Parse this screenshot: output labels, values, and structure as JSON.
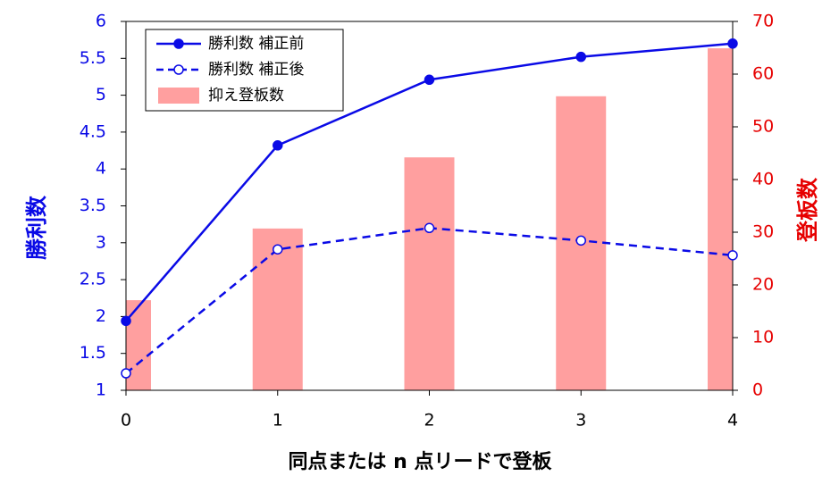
{
  "chart_data": {
    "type": "combo",
    "xlabel": "同点または n 点リードで登板",
    "ylabel": "勝利数",
    "y2label": "登板数",
    "x": [
      0,
      1,
      2,
      3,
      4
    ],
    "xlim": [
      0,
      4
    ],
    "xticks": [
      0,
      1,
      2,
      3,
      4
    ],
    "ylim": [
      1,
      6
    ],
    "yticks": [
      1,
      1.5,
      2,
      2.5,
      3,
      3.5,
      4,
      4.5,
      5,
      5.5,
      6
    ],
    "y2lim": [
      0,
      70
    ],
    "y2ticks": [
      0,
      10,
      20,
      30,
      40,
      50,
      60,
      70
    ],
    "legend": "upper left",
    "series": [
      {
        "name": "勝利数 補正前",
        "kind": "line",
        "dashed": false,
        "marker": "filled",
        "color": "#0a0ae6",
        "values": [
          1.94,
          4.32,
          5.21,
          5.52,
          5.7
        ]
      },
      {
        "name": "勝利数 補正後",
        "kind": "line",
        "dashed": true,
        "marker": "open",
        "color": "#0a0ae6",
        "values": [
          1.23,
          2.91,
          3.2,
          3.03,
          2.83
        ]
      },
      {
        "name": "抑え登板数",
        "kind": "bar",
        "axis": "y2",
        "color": "#ff9f9f",
        "values": [
          17.1,
          30.7,
          44.2,
          55.8,
          64.9
        ]
      }
    ]
  }
}
